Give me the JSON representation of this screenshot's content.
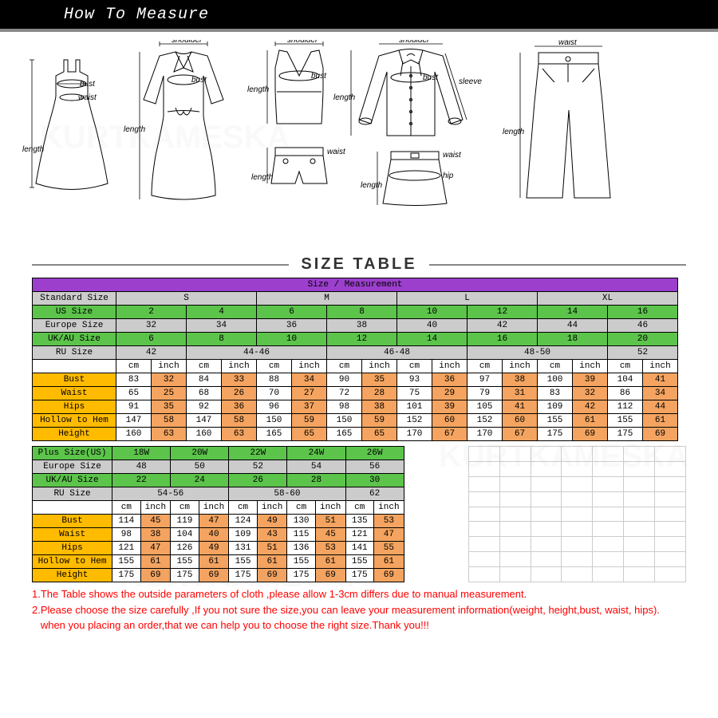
{
  "header": {
    "title": "How To Measure"
  },
  "section_label": "SIZE TABLE",
  "diagram_labels": {
    "dress1": {
      "bust": "bust",
      "waist": "waist",
      "length": "length"
    },
    "dress2": {
      "shoulder": "shoulder",
      "bust": "bust",
      "length": "length"
    },
    "tank": {
      "shoulder": "shoulder",
      "bust": "bust",
      "length": "length"
    },
    "shorts": {
      "waist": "waist",
      "length": "length"
    },
    "shirt": {
      "shoulder": "shoulder",
      "bust": "bust",
      "length": "length",
      "sleeve": "sleeve"
    },
    "skirt": {
      "waist": "waist",
      "hip": "hip",
      "length": "length"
    },
    "pants": {
      "waist": "waist",
      "length": "length"
    }
  },
  "colors": {
    "purple": "#9b3fcc",
    "green": "#5cc44b",
    "gray": "#cccccc",
    "orange": "#f4a460",
    "yellow": "#ffbb00",
    "white": "#ffffff"
  },
  "table1": {
    "header_row": "Size / Measurement",
    "standard_sizes": [
      "S",
      "M",
      "L",
      "XL"
    ],
    "us_sizes": [
      "2",
      "4",
      "6",
      "8",
      "10",
      "12",
      "14",
      "16"
    ],
    "europe_sizes": [
      "32",
      "34",
      "36",
      "38",
      "40",
      "42",
      "44",
      "46"
    ],
    "uk_sizes": [
      "6",
      "8",
      "10",
      "12",
      "14",
      "16",
      "18",
      "20"
    ],
    "ru_sizes": [
      "42",
      "44-46",
      "46-48",
      "48-50",
      "52"
    ],
    "unit_labels": [
      "cm",
      "inch"
    ],
    "row_labels": [
      "Bust",
      "Waist",
      "Hips",
      "Hollow to Hem",
      "Height"
    ],
    "bust": [
      "83",
      "32",
      "84",
      "33",
      "88",
      "34",
      "90",
      "35",
      "93",
      "36",
      "97",
      "38",
      "100",
      "39",
      "104",
      "41"
    ],
    "waist": [
      "65",
      "25",
      "68",
      "26",
      "70",
      "27",
      "72",
      "28",
      "75",
      "29",
      "79",
      "31",
      "83",
      "32",
      "86",
      "34"
    ],
    "hips": [
      "91",
      "35",
      "92",
      "36",
      "96",
      "37",
      "98",
      "38",
      "101",
      "39",
      "105",
      "41",
      "109",
      "42",
      "112",
      "44"
    ],
    "hollow": [
      "147",
      "58",
      "147",
      "58",
      "150",
      "59",
      "150",
      "59",
      "152",
      "60",
      "152",
      "60",
      "155",
      "61",
      "155",
      "61"
    ],
    "height": [
      "160",
      "63",
      "160",
      "63",
      "165",
      "65",
      "165",
      "65",
      "170",
      "67",
      "170",
      "67",
      "175",
      "69",
      "175",
      "69"
    ]
  },
  "table2": {
    "plus_sizes": [
      "18W",
      "20W",
      "22W",
      "24W",
      "26W"
    ],
    "europe_sizes": [
      "48",
      "50",
      "52",
      "54",
      "56"
    ],
    "uk_sizes": [
      "22",
      "24",
      "26",
      "28",
      "30"
    ],
    "ru_sizes": [
      "54-56",
      "58-60",
      "62"
    ],
    "row_labels": [
      "Bust",
      "Waist",
      "Hips",
      "Hollow to Hem",
      "Height"
    ],
    "bust": [
      "114",
      "45",
      "119",
      "47",
      "124",
      "49",
      "130",
      "51",
      "135",
      "53"
    ],
    "waist": [
      "98",
      "38",
      "104",
      "40",
      "109",
      "43",
      "115",
      "45",
      "121",
      "47"
    ],
    "hips": [
      "121",
      "47",
      "126",
      "49",
      "131",
      "51",
      "136",
      "53",
      "141",
      "55"
    ],
    "hollow": [
      "155",
      "61",
      "155",
      "61",
      "155",
      "61",
      "155",
      "61",
      "155",
      "61"
    ],
    "height": [
      "175",
      "69",
      "175",
      "69",
      "175",
      "69",
      "175",
      "69",
      "175",
      "69"
    ]
  },
  "labels": {
    "standard_size": "Standard Size",
    "us_size": "US Size",
    "europe_size": "Europe Size",
    "uk_size": "UK/AU Size",
    "ru_size": "RU Size",
    "plus_size": "Plus Size(US)"
  },
  "notes": [
    "1.The Table shows the outside parameters of cloth ,please allow 1-3cm differs due to manual measurement.",
    "2.Please choose the size carefully ,If you not sure the size,you can leave your measurement information(weight, height,bust, waist, hips).",
    "   when you placing an order,that we can help you to choose the right size.Thank you!!!"
  ],
  "watermark": "KURTKAMESKA"
}
